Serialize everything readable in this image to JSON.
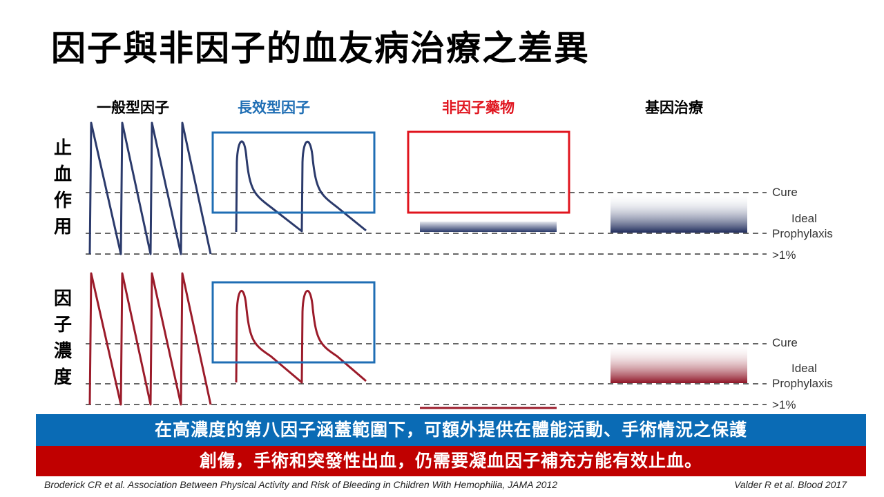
{
  "title": "因子與非因子的血友病治療之差異",
  "columns": [
    {
      "label": "一般型因子",
      "color": "#000000"
    },
    {
      "label": "長效型因子",
      "color": "#1f6eb4"
    },
    {
      "label": "非因子藥物",
      "color": "#e0141e"
    },
    {
      "label": "基因治療",
      "color": "#000000"
    }
  ],
  "rows": [
    {
      "label": "止血作用",
      "chars": [
        "止",
        "血",
        "作",
        "用"
      ],
      "curve_color": "#2b3a6b"
    },
    {
      "label": "因子濃度",
      "chars": [
        "因",
        "子",
        "濃",
        "度"
      ],
      "curve_color": "#9b1b2a"
    }
  ],
  "levels": {
    "cure": "Cure",
    "ideal": "Ideal",
    "prophylaxis": "Prophylaxis",
    "low": ">1%"
  },
  "banner_blue": {
    "text": "在高濃度的第八因子涵蓋範圍下，可額外提供在體能活動、手術情況之保護",
    "color": "#0a6bb5"
  },
  "banner_red": {
    "text": "創傷，手術和突發性出血，仍需要凝血因子補充方能有效止血。",
    "color": "#c00000"
  },
  "citation_left": {
    "authors": "Broderick CR",
    "etal": "et al.",
    "rest": "Association Between Physical Activity and Risk of Bleeding in Children With Hemophilia, JAMA 2012"
  },
  "citation_right": "Valder R et al. Blood 2017"
}
